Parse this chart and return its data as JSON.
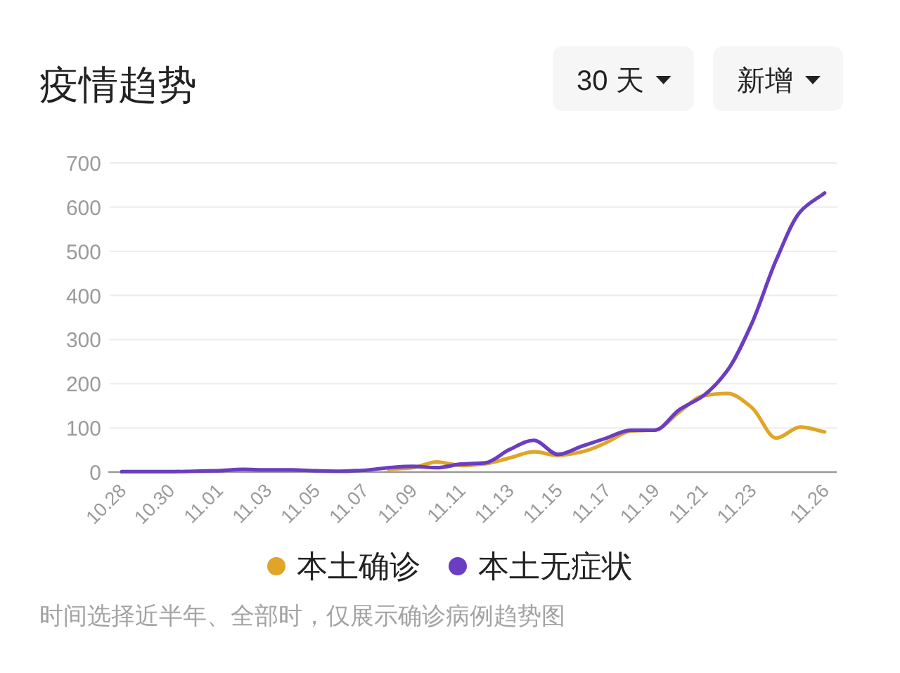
{
  "chart_data": {
    "type": "line",
    "title": "疫情趋势",
    "categories": [
      "10.28",
      null,
      "10.30",
      null,
      "11.01",
      null,
      "11.03",
      null,
      "11.05",
      null,
      "11.07",
      null,
      "11.09",
      null,
      "11.11",
      null,
      "11.13",
      null,
      "11.15",
      null,
      "11.17",
      null,
      "11.19",
      null,
      "11.21",
      null,
      "11.23",
      null,
      null,
      "11.26"
    ],
    "series": [
      {
        "name": "本土确诊",
        "color": "#e0a528",
        "values": [
          null,
          null,
          null,
          null,
          null,
          null,
          null,
          null,
          null,
          null,
          null,
          6,
          10,
          23,
          15,
          19,
          32,
          46,
          38,
          46,
          67,
          93,
          95,
          136,
          173,
          178,
          146,
          77,
          102,
          91
        ]
      },
      {
        "name": "本土无症状",
        "color": "#6a3dc2",
        "values": [
          1,
          1,
          1,
          2,
          3,
          6,
          5,
          5,
          3,
          2,
          4,
          10,
          13,
          10,
          18,
          21,
          51,
          72,
          40,
          59,
          77,
          95,
          95,
          141,
          173,
          231,
          337,
          480,
          590,
          632
        ]
      }
    ],
    "ylim": [
      0,
      700
    ],
    "yticks": [
      0,
      100,
      200,
      300,
      400,
      500,
      600,
      700
    ],
    "grid": "y",
    "legend": "bottom",
    "annotations": [
      "30 天",
      "新增",
      "时间选择近半年、全部时，仅展示确诊病例趋势图"
    ]
  }
}
